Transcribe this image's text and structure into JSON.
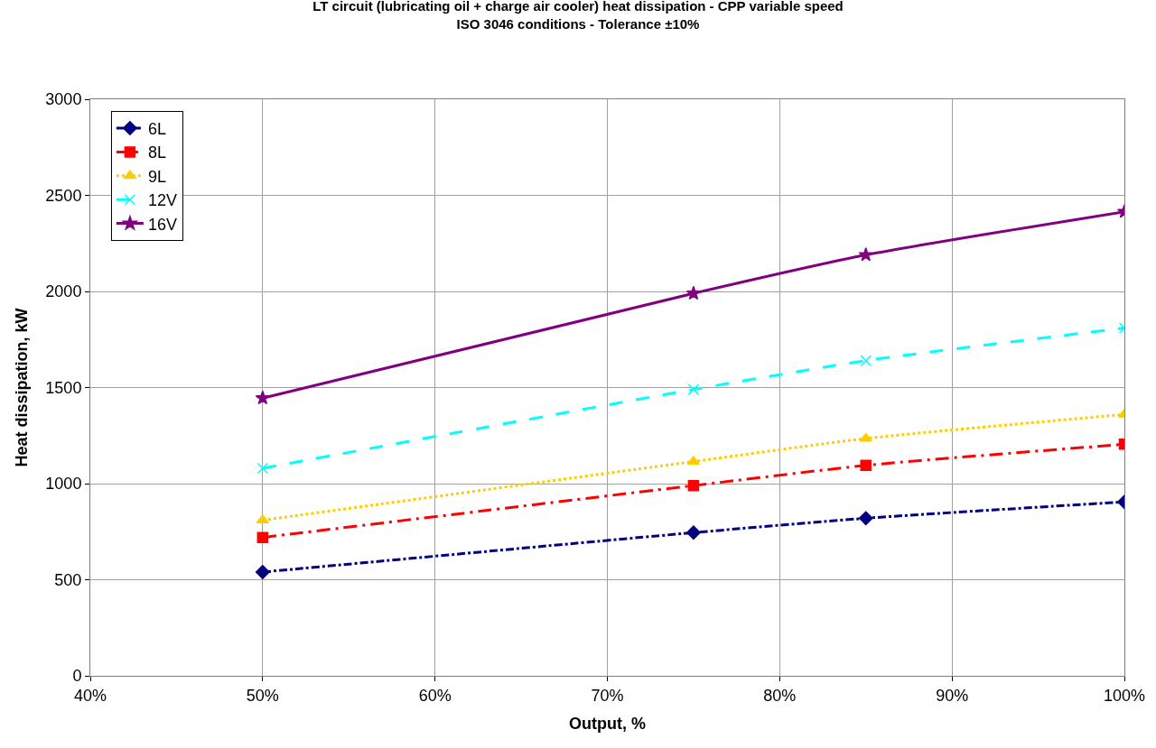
{
  "chart_data": {
    "type": "line",
    "title": "LT circuit (lubricating oil + charge air cooler) heat dissipation - CPP variable speed",
    "subtitle": "ISO 3046 conditions - Tolerance ±10%",
    "xlabel": "Output, %",
    "ylabel": "Heat dissipation, kW",
    "x": [
      50,
      75,
      85,
      100
    ],
    "series": [
      {
        "name": "6L",
        "color": "#000080",
        "marker": "diamond",
        "line_style": "dashdot",
        "values": [
          540,
          745,
          820,
          905
        ]
      },
      {
        "name": "8L",
        "color": "#ff0000",
        "marker": "square",
        "line_style": "longdashdot",
        "values": [
          720,
          990,
          1095,
          1205
        ]
      },
      {
        "name": "9L",
        "color": "#ffcc00",
        "marker": "triangle",
        "line_style": "dotted",
        "values": [
          810,
          1115,
          1235,
          1360
        ]
      },
      {
        "name": "12V",
        "color": "#00ffff",
        "marker": "cross",
        "line_style": "dashed",
        "values": [
          1080,
          1490,
          1640,
          1810
        ]
      },
      {
        "name": "16V",
        "color": "#800080",
        "marker": "star",
        "line_style": "solid",
        "values": [
          1445,
          1990,
          2190,
          2415
        ]
      }
    ],
    "xlim": [
      40,
      100
    ],
    "xticks": [
      {
        "value": 40,
        "label": "40%"
      },
      {
        "value": 50,
        "label": "50%"
      },
      {
        "value": 60,
        "label": "60%"
      },
      {
        "value": 70,
        "label": "70%"
      },
      {
        "value": 80,
        "label": "80%"
      },
      {
        "value": 90,
        "label": "90%"
      },
      {
        "value": 100,
        "label": "100%"
      }
    ],
    "ylim": [
      0,
      3000
    ],
    "yticks": [
      0,
      500,
      1000,
      1500,
      2000,
      2500,
      3000
    ],
    "grid": true,
    "legend": "top left"
  }
}
